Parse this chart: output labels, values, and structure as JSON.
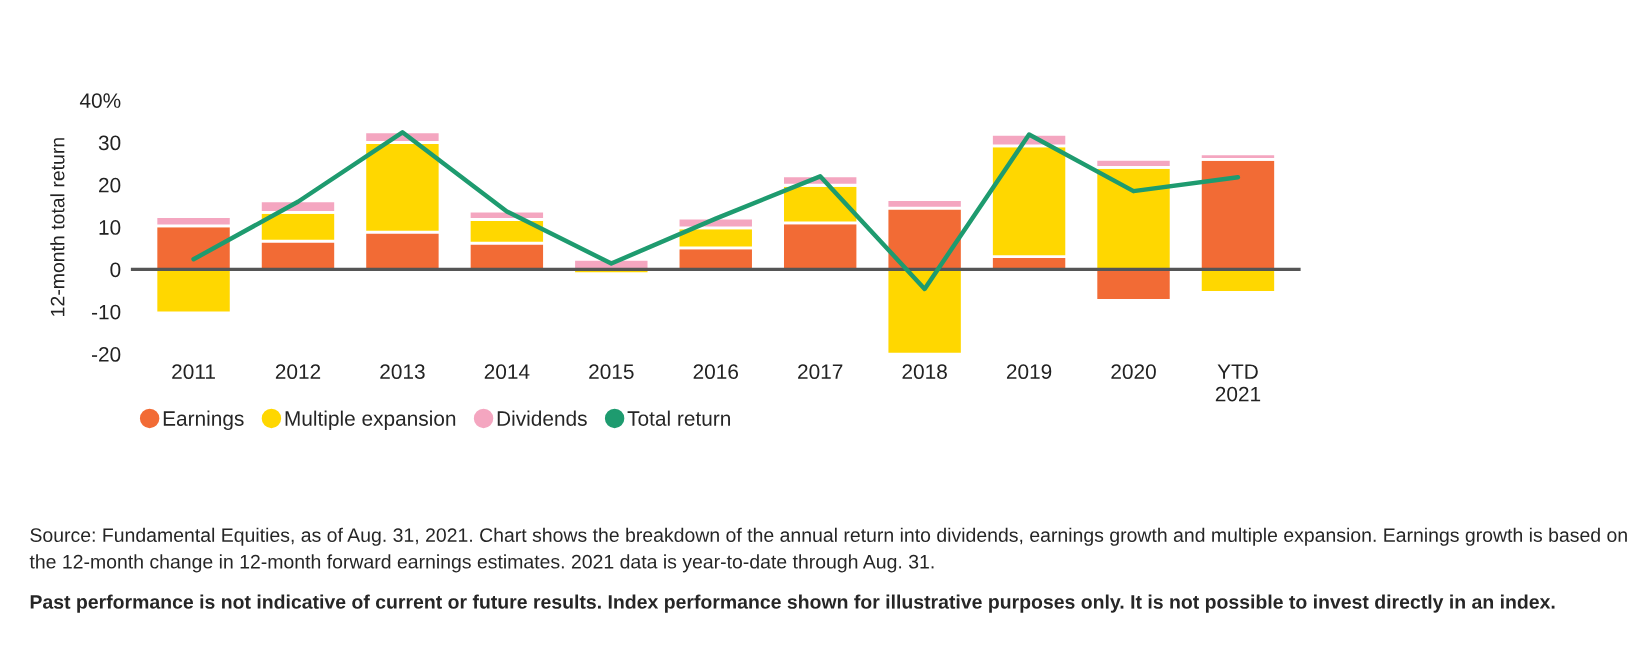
{
  "chart_data": {
    "type": "bar",
    "stacked": true,
    "ylabel": "12-month total return",
    "categories": [
      "2011",
      "2012",
      "2013",
      "2014",
      "2015",
      "2016",
      "2017",
      "2018",
      "2019",
      "2020",
      "YTD\n2021"
    ],
    "series": [
      {
        "name": "Earnings",
        "color": "#f26b35",
        "values": [
          10.3,
          6.7,
          8.8,
          6.2,
          0,
          5.1,
          11,
          14.5,
          3.0,
          -7.3,
          26
        ]
      },
      {
        "name": "Multiple expansion",
        "color": "#ffd700",
        "values": [
          -10.3,
          6.8,
          21.2,
          5.6,
          -1,
          4.7,
          8.9,
          -20,
          26.2,
          24.1,
          -5.4
        ]
      },
      {
        "name": "Dividends",
        "color": "#f4a6c0",
        "values": [
          2.2,
          2.7,
          2.5,
          2.0,
          2.4,
          2.3,
          2.2,
          2.0,
          2.7,
          1.9,
          1.3
        ]
      },
      {
        "name": "Total return",
        "type": "line",
        "color": "#1e9b6f",
        "values": [
          2.4,
          16,
          32.4,
          13.7,
          1.4,
          12,
          22,
          -4.6,
          31.9,
          18.5,
          21.8
        ]
      }
    ],
    "ylim": [
      -20,
      40
    ],
    "yticks": [
      -20,
      -10,
      0,
      10,
      20,
      30,
      {
        "value": 40,
        "label": "40%"
      }
    ],
    "ref_lines": [
      {
        "axis": "y",
        "value": 0,
        "color": "#555555"
      }
    ],
    "grid": false,
    "legend": "bottom left",
    "annotations": [
      "Source: Fundamental Equities, as of Aug. 31, 2021. Chart shows the breakdown of the annual return into dividends, earnings growth and multiple expansion. Earnings growth is based on the 12-month change in 12-month forward earnings estimates. 2021 data is year-to-date through Aug. 31.",
      "Past performance is not indicative of current or future results. Index performance shown for illustrative purposes only. It is not possible to invest directly in an index."
    ]
  }
}
